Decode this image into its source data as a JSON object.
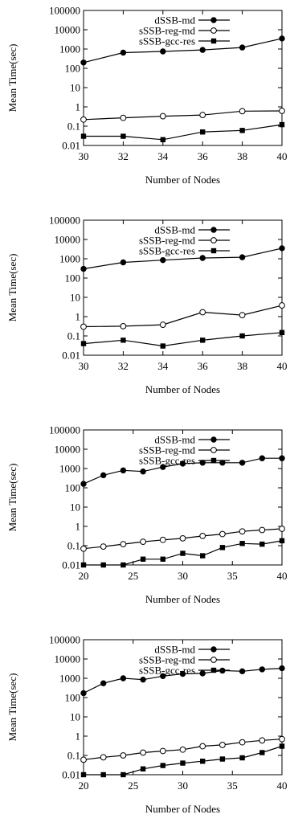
{
  "chart_data": [
    {
      "type": "line",
      "xlabel": "Number of Nodes",
      "ylabel": "Mean Time(sec)",
      "yscale": "log",
      "xlim": [
        30,
        40
      ],
      "ylim": [
        0.01,
        100000
      ],
      "xticks": [
        30,
        32,
        34,
        36,
        38,
        40
      ],
      "yticks": [
        0.01,
        0.1,
        1,
        10,
        100,
        1000,
        10000,
        100000
      ],
      "ytick_labels": [
        "0.01",
        "0.1",
        "1",
        "10",
        "100",
        "1000",
        "10000",
        "100000"
      ],
      "legend_position": "top-center",
      "grid": false,
      "series": [
        {
          "name": "dSSB-md",
          "marker": "filled-circle",
          "x": [
            30,
            32,
            34,
            36,
            38,
            40
          ],
          "values": [
            200,
            650,
            750,
            900,
            1200,
            3500
          ]
        },
        {
          "name": "sSSB-reg-md",
          "marker": "open-circle",
          "x": [
            30,
            32,
            34,
            36,
            38,
            40
          ],
          "values": [
            0.22,
            0.27,
            0.33,
            0.38,
            0.6,
            0.62
          ]
        },
        {
          "name": "sSSB-gcc-res",
          "marker": "filled-square",
          "x": [
            30,
            32,
            34,
            36,
            38,
            40
          ],
          "values": [
            0.03,
            0.03,
            0.02,
            0.05,
            0.06,
            0.12
          ]
        }
      ]
    },
    {
      "type": "line",
      "xlabel": "Number of Nodes",
      "ylabel": "Mean Time(sec)",
      "yscale": "log",
      "xlim": [
        30,
        40
      ],
      "ylim": [
        0.01,
        100000
      ],
      "xticks": [
        30,
        32,
        34,
        36,
        38,
        40
      ],
      "yticks": [
        0.01,
        0.1,
        1,
        10,
        100,
        1000,
        10000,
        100000
      ],
      "ytick_labels": [
        "0.01",
        "0.1",
        "1",
        "10",
        "100",
        "1000",
        "10000",
        "100000"
      ],
      "legend_position": "top-center",
      "grid": false,
      "series": [
        {
          "name": "dSSB-md",
          "marker": "filled-circle",
          "x": [
            30,
            32,
            34,
            36,
            38,
            40
          ],
          "values": [
            300,
            650,
            850,
            1100,
            1200,
            3500
          ]
        },
        {
          "name": "sSSB-reg-md",
          "marker": "open-circle",
          "x": [
            30,
            32,
            34,
            36,
            38,
            40
          ],
          "values": [
            0.3,
            0.32,
            0.38,
            1.7,
            1.2,
            3.8
          ]
        },
        {
          "name": "sSSB-gcc-res",
          "marker": "filled-square",
          "x": [
            30,
            32,
            34,
            36,
            38,
            40
          ],
          "values": [
            0.04,
            0.06,
            0.03,
            0.06,
            0.1,
            0.15
          ]
        }
      ]
    },
    {
      "type": "line",
      "xlabel": "Number of Nodes",
      "ylabel": "Mean Time(sec)",
      "yscale": "log",
      "xlim": [
        20,
        40
      ],
      "ylim": [
        0.01,
        100000
      ],
      "xticks": [
        20,
        25,
        30,
        35,
        40
      ],
      "yticks": [
        0.01,
        0.1,
        1,
        10,
        100,
        1000,
        10000,
        100000
      ],
      "ytick_labels": [
        "0.01",
        "0.1",
        "1",
        "10",
        "100",
        "1000",
        "10000",
        "100000"
      ],
      "legend_position": "top-center",
      "grid": false,
      "series": [
        {
          "name": "dSSB-md",
          "marker": "filled-circle",
          "x": [
            20,
            22,
            24,
            26,
            28,
            30,
            32,
            34,
            36,
            38,
            40
          ],
          "values": [
            160,
            450,
            800,
            700,
            1200,
            1800,
            2000,
            2000,
            2000,
            3400,
            3400
          ]
        },
        {
          "name": "sSSB-reg-md",
          "marker": "open-circle",
          "x": [
            20,
            22,
            24,
            26,
            28,
            30,
            32,
            34,
            36,
            38,
            40
          ],
          "values": [
            0.07,
            0.09,
            0.12,
            0.16,
            0.2,
            0.24,
            0.32,
            0.4,
            0.55,
            0.65,
            0.75
          ]
        },
        {
          "name": "sSSB-gcc-res",
          "marker": "filled-square",
          "x": [
            20,
            22,
            24,
            26,
            28,
            30,
            32,
            34,
            36,
            38,
            40
          ],
          "values": [
            0.01,
            0.01,
            0.01,
            0.02,
            0.02,
            0.04,
            0.03,
            0.08,
            0.13,
            0.12,
            0.18
          ]
        }
      ]
    },
    {
      "type": "line",
      "xlabel": "Number of Nodes",
      "ylabel": "Mean Time(sec)",
      "yscale": "log",
      "xlim": [
        20,
        40
      ],
      "ylim": [
        0.01,
        100000
      ],
      "xticks": [
        20,
        25,
        30,
        35,
        40
      ],
      "yticks": [
        0.01,
        0.1,
        1,
        10,
        100,
        1000,
        10000,
        100000
      ],
      "ytick_labels": [
        "0.01",
        "0.1",
        "1",
        "10",
        "100",
        "1000",
        "10000",
        "100000"
      ],
      "legend_position": "top-center",
      "grid": false,
      "series": [
        {
          "name": "dSSB-md",
          "marker": "filled-circle",
          "x": [
            20,
            22,
            24,
            26,
            28,
            30,
            32,
            34,
            36,
            38,
            40
          ],
          "values": [
            170,
            550,
            1000,
            850,
            1300,
            1700,
            1800,
            2500,
            2300,
            2900,
            3300
          ]
        },
        {
          "name": "sSSB-reg-md",
          "marker": "open-circle",
          "x": [
            20,
            22,
            24,
            26,
            28,
            30,
            32,
            34,
            36,
            38,
            40
          ],
          "values": [
            0.06,
            0.08,
            0.1,
            0.14,
            0.17,
            0.2,
            0.3,
            0.35,
            0.48,
            0.6,
            0.7
          ]
        },
        {
          "name": "sSSB-gcc-res",
          "marker": "filled-square",
          "x": [
            20,
            22,
            24,
            26,
            28,
            30,
            32,
            34,
            36,
            38,
            40
          ],
          "values": [
            0.01,
            0.01,
            0.01,
            0.02,
            0.03,
            0.04,
            0.05,
            0.065,
            0.075,
            0.14,
            0.3
          ]
        }
      ]
    }
  ]
}
